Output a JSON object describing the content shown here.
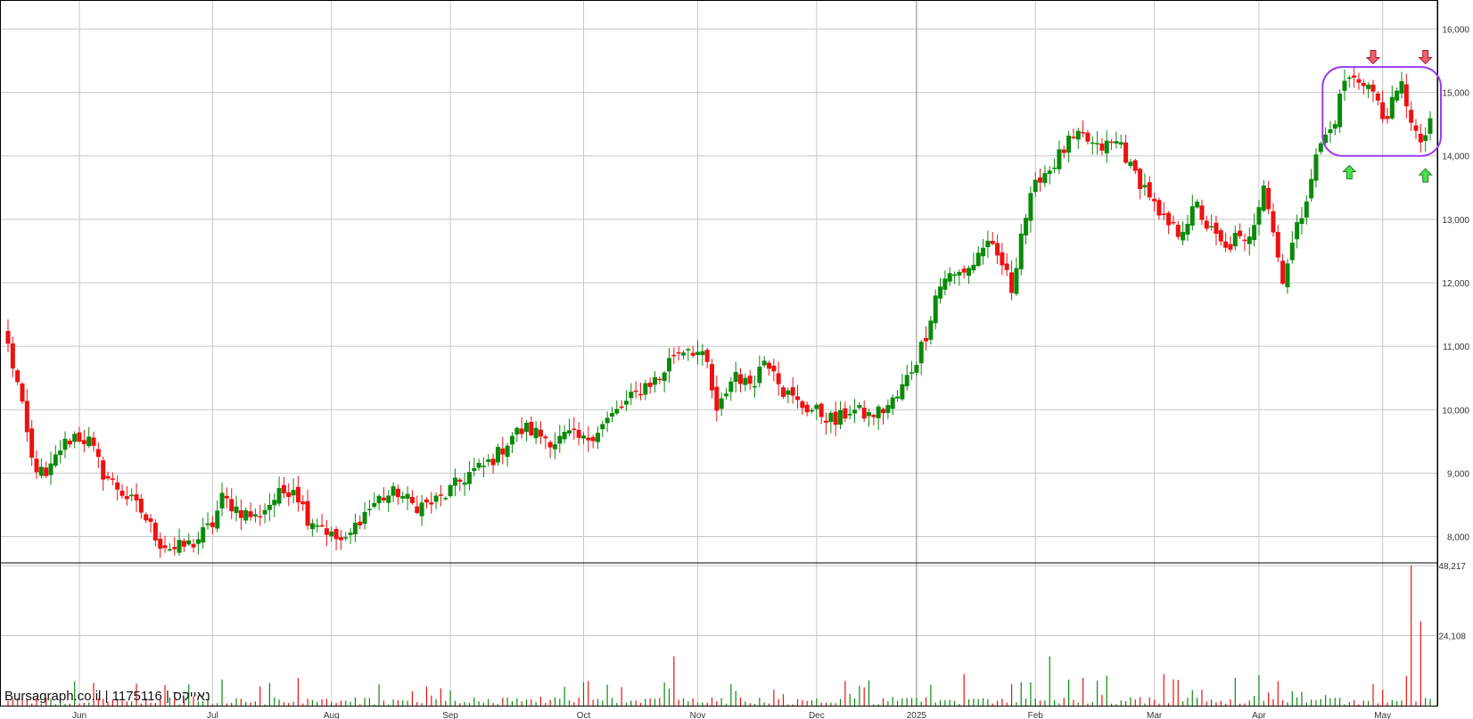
{
  "footer": {
    "site": "Bursagraph.co.il",
    "sep1": " | ",
    "security_id": "1175116",
    "sep2": " | ",
    "security_name": "נאייקס"
  },
  "colors": {
    "up": "#0a8a0a",
    "down": "#ee1111",
    "grid": "#c8c8c8",
    "highlight": "#9b3cf0",
    "arrow_down": "#f06070",
    "arrow_up": "#50dd50"
  },
  "chart_data": {
    "type": "candlestick",
    "price_axis": {
      "ticks": [
        "8,000",
        "9,000",
        "10,000",
        "11,000",
        "12,000",
        "13,000",
        "14,000",
        "15,000",
        "16,000"
      ],
      "ylim": [
        7600,
        16400
      ]
    },
    "volume_axis": {
      "ticks": [
        "24,108",
        "48,217"
      ],
      "ylim": [
        0,
        48217
      ]
    },
    "x_tick_labels": [
      "Jun",
      "Jul",
      "Aug",
      "Sep",
      "Oct",
      "Nov",
      "Dec",
      "2025",
      "Feb",
      "Mar",
      "Apr",
      "May"
    ],
    "x_tick_trading_day_index": [
      15,
      43,
      68,
      93,
      121,
      145,
      170,
      191,
      216,
      241,
      263,
      289
    ],
    "grid": true,
    "price_anchors": [
      [
        0,
        11000
      ],
      [
        2,
        10400
      ],
      [
        5,
        9200
      ],
      [
        8,
        8900
      ],
      [
        11,
        9400
      ],
      [
        14,
        9600
      ],
      [
        17,
        9500
      ],
      [
        20,
        9000
      ],
      [
        24,
        8700
      ],
      [
        28,
        8400
      ],
      [
        32,
        7900
      ],
      [
        35,
        7800
      ],
      [
        39,
        7900
      ],
      [
        43,
        8200
      ],
      [
        45,
        8600
      ],
      [
        49,
        8400
      ],
      [
        52,
        8300
      ],
      [
        56,
        8600
      ],
      [
        60,
        8800
      ],
      [
        63,
        8300
      ],
      [
        66,
        8200
      ],
      [
        68,
        8000
      ],
      [
        71,
        7900
      ],
      [
        74,
        8300
      ],
      [
        78,
        8600
      ],
      [
        82,
        8700
      ],
      [
        85,
        8500
      ],
      [
        88,
        8500
      ],
      [
        91,
        8600
      ],
      [
        94,
        8800
      ],
      [
        97,
        9000
      ],
      [
        100,
        9100
      ],
      [
        103,
        9300
      ],
      [
        106,
        9600
      ],
      [
        109,
        9700
      ],
      [
        112,
        9600
      ],
      [
        115,
        9500
      ],
      [
        118,
        9600
      ],
      [
        121,
        9500
      ],
      [
        124,
        9700
      ],
      [
        127,
        9900
      ],
      [
        130,
        10100
      ],
      [
        134,
        10400
      ],
      [
        137,
        10500
      ],
      [
        140,
        10900
      ],
      [
        143,
        11000
      ],
      [
        145,
        10900
      ],
      [
        147,
        10700
      ],
      [
        149,
        9900
      ],
      [
        151,
        10300
      ],
      [
        153,
        10600
      ],
      [
        155,
        10400
      ],
      [
        157,
        10500
      ],
      [
        159,
        10800
      ],
      [
        161,
        10700
      ],
      [
        163,
        10300
      ],
      [
        166,
        10100
      ],
      [
        169,
        10000
      ],
      [
        172,
        9900
      ],
      [
        174,
        9800
      ],
      [
        177,
        10000
      ],
      [
        181,
        9900
      ],
      [
        184,
        10000
      ],
      [
        187,
        10200
      ],
      [
        189,
        10500
      ],
      [
        191,
        10800
      ],
      [
        193,
        11200
      ],
      [
        195,
        11800
      ],
      [
        197,
        12100
      ],
      [
        199,
        12100
      ],
      [
        201,
        12200
      ],
      [
        203,
        12300
      ],
      [
        205,
        12600
      ],
      [
        207,
        12500
      ],
      [
        209,
        12300
      ],
      [
        211,
        11900
      ],
      [
        213,
        12800
      ],
      [
        215,
        13300
      ],
      [
        217,
        13700
      ],
      [
        219,
        13800
      ],
      [
        221,
        14000
      ],
      [
        223,
        14200
      ],
      [
        226,
        14300
      ],
      [
        229,
        14100
      ],
      [
        232,
        14200
      ],
      [
        234,
        14200
      ],
      [
        236,
        13800
      ],
      [
        238,
        13600
      ],
      [
        240,
        13400
      ],
      [
        242,
        13000
      ],
      [
        244,
        12900
      ],
      [
        246,
        12800
      ],
      [
        248,
        13000
      ],
      [
        250,
        13200
      ],
      [
        252,
        12900
      ],
      [
        254,
        12700
      ],
      [
        256,
        12500
      ],
      [
        258,
        12700
      ],
      [
        260,
        12600
      ],
      [
        262,
        13000
      ],
      [
        264,
        13600
      ],
      [
        265,
        13200
      ],
      [
        267,
        12400
      ],
      [
        268,
        12100
      ],
      [
        270,
        12600
      ],
      [
        272,
        13100
      ],
      [
        274,
        13700
      ],
      [
        276,
        14200
      ],
      [
        278,
        14400
      ],
      [
        279,
        14600
      ],
      [
        281,
        15200
      ],
      [
        283,
        15200
      ],
      [
        285,
        15200
      ],
      [
        287,
        15000
      ],
      [
        289,
        14600
      ],
      [
        291,
        14800
      ],
      [
        293,
        15100
      ],
      [
        295,
        14600
      ],
      [
        297,
        14100
      ],
      [
        299,
        14600
      ]
    ],
    "annotations": [
      {
        "type": "rounded_rectangle",
        "price_range": [
          14000,
          15400
        ],
        "day_range": [
          279,
          299
        ]
      },
      {
        "type": "arrow_down",
        "day": 287,
        "price": 15550
      },
      {
        "type": "arrow_down",
        "day": 298,
        "price": 15550
      },
      {
        "type": "arrow_up",
        "day": 282,
        "price": 13750
      },
      {
        "type": "arrow_up",
        "day": 298,
        "price": 13700
      }
    ]
  }
}
